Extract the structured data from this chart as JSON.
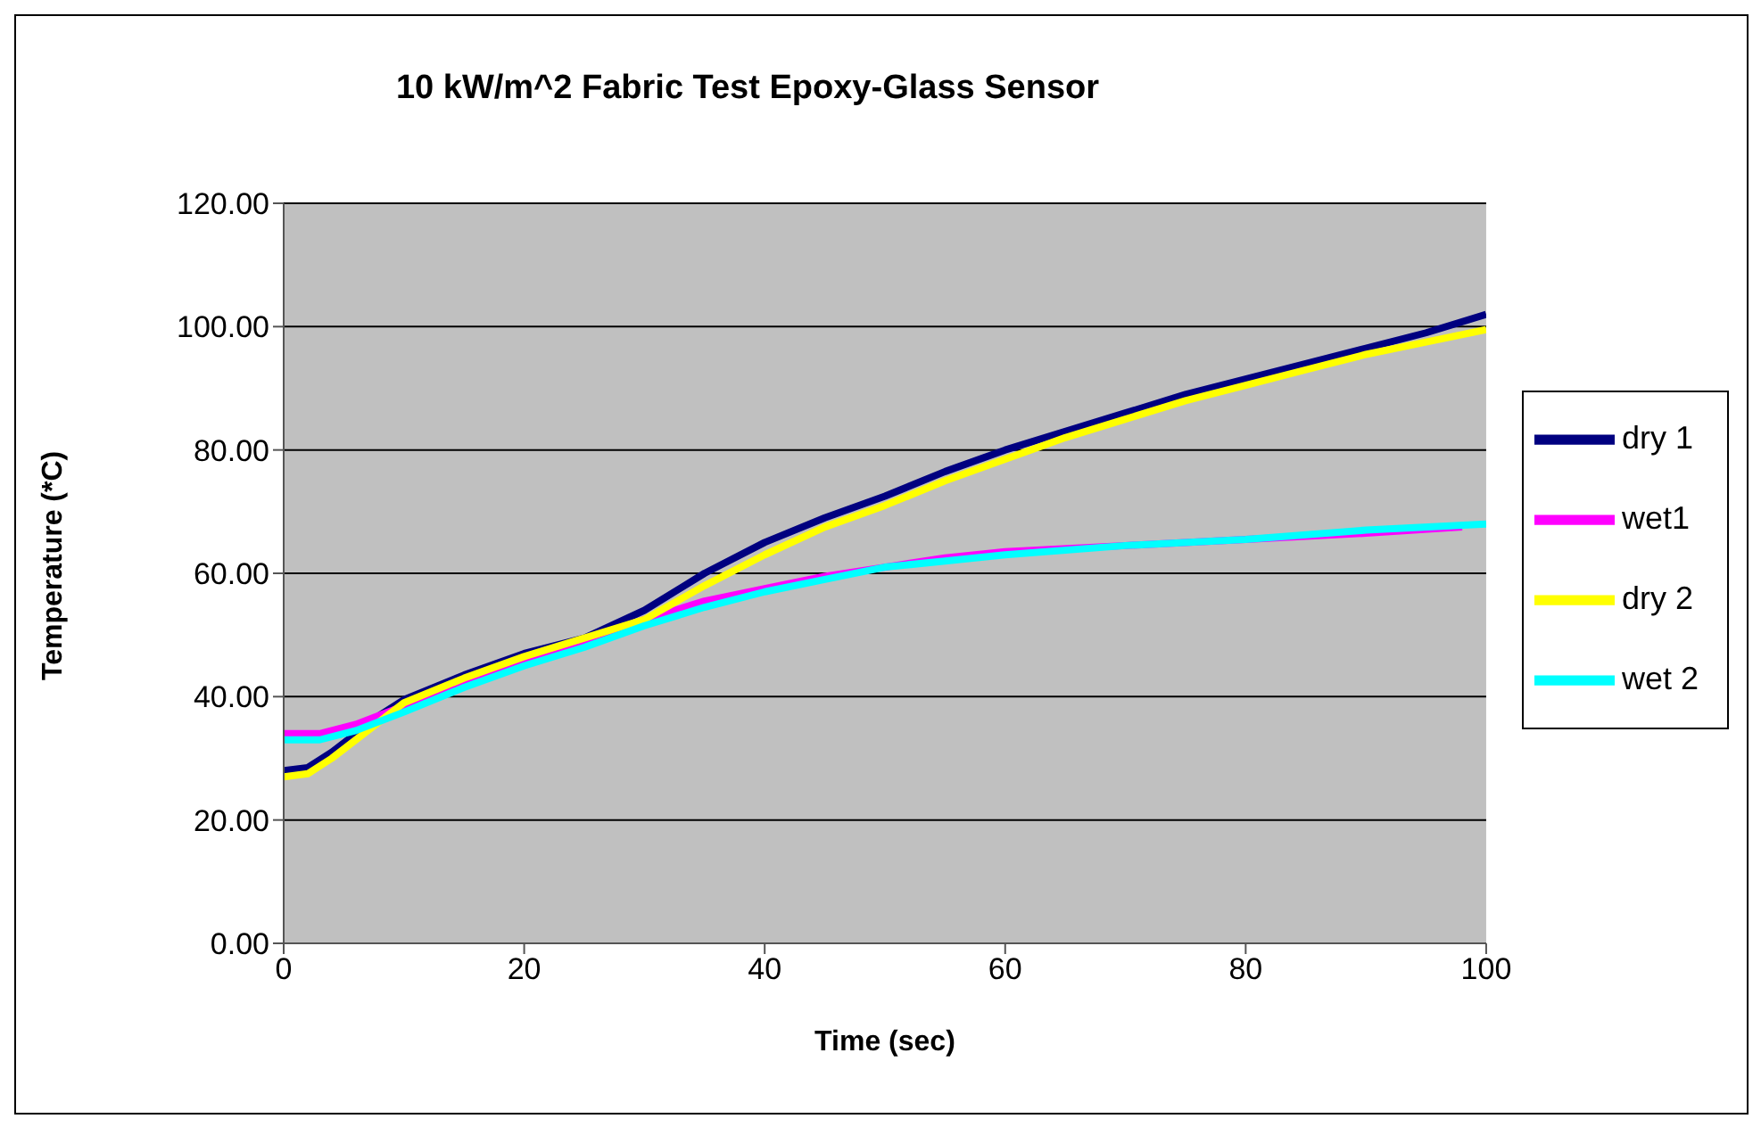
{
  "chart_data": {
    "type": "line",
    "title": "10 kW/m^2 Fabric Test Epoxy-Glass Sensor",
    "xlabel": "Time (sec)",
    "ylabel": "Temperature (*C)",
    "xlim": [
      0,
      100
    ],
    "xticks": [
      0,
      20,
      40,
      60,
      80,
      100
    ],
    "ylim": [
      0,
      120
    ],
    "yticks": [
      {
        "value": 0,
        "label": "0.00"
      },
      {
        "value": 20,
        "label": "20.00"
      },
      {
        "value": 40,
        "label": "40.00"
      },
      {
        "value": 60,
        "label": "60.00"
      },
      {
        "value": 80,
        "label": "80.00"
      },
      {
        "value": 100,
        "label": "100.00"
      },
      {
        "value": 120,
        "label": "120.00"
      }
    ],
    "grid": "y",
    "legend": "right",
    "marker": "none",
    "line_style": "solid",
    "series": [
      {
        "name": "dry 1",
        "color": "#000080",
        "x": [
          0,
          2,
          4,
          6,
          8,
          10,
          15,
          20,
          25,
          30,
          35,
          40,
          45,
          50,
          55,
          60,
          65,
          70,
          75,
          80,
          85,
          90,
          95,
          100
        ],
        "values": [
          28,
          28.5,
          31,
          34,
          37,
          39.5,
          43.5,
          47,
          49.5,
          54,
          60,
          65,
          69,
          72.5,
          76.5,
          80,
          83,
          86,
          89,
          91.5,
          94,
          96.5,
          99,
          102
        ]
      },
      {
        "name": "wet1",
        "color": "#ff00ff",
        "x": [
          0,
          3,
          6,
          10,
          15,
          20,
          25,
          30,
          35,
          40,
          45,
          50,
          55,
          60,
          70,
          80,
          90,
          98
        ],
        "values": [
          34,
          34,
          35.5,
          38.5,
          42.5,
          46,
          49,
          52.5,
          55.5,
          57.5,
          59.5,
          61,
          62.5,
          63.5,
          64.5,
          65.5,
          66.5,
          67.5
        ]
      },
      {
        "name": "dry 2",
        "color": "#ffff00",
        "x": [
          0,
          2,
          4,
          6,
          8,
          10,
          15,
          20,
          25,
          30,
          35,
          40,
          45,
          50,
          55,
          60,
          65,
          70,
          75,
          80,
          85,
          90,
          95,
          100
        ],
        "values": [
          27,
          27.5,
          30,
          33,
          36,
          39,
          43,
          46.5,
          49.5,
          52.5,
          58,
          63,
          67.5,
          71,
          75,
          78.5,
          82,
          85,
          88,
          90.5,
          93,
          95.5,
          97.5,
          99.5
        ]
      },
      {
        "name": "wet 2",
        "color": "#00ffff",
        "x": [
          0,
          3,
          6,
          10,
          15,
          20,
          25,
          30,
          35,
          40,
          45,
          50,
          55,
          60,
          70,
          80,
          90,
          100
        ],
        "values": [
          33,
          33,
          34.5,
          37.5,
          41.5,
          45,
          48,
          51.5,
          54.5,
          57,
          59,
          61,
          62,
          63,
          64.5,
          65.5,
          67,
          68
        ]
      }
    ]
  }
}
